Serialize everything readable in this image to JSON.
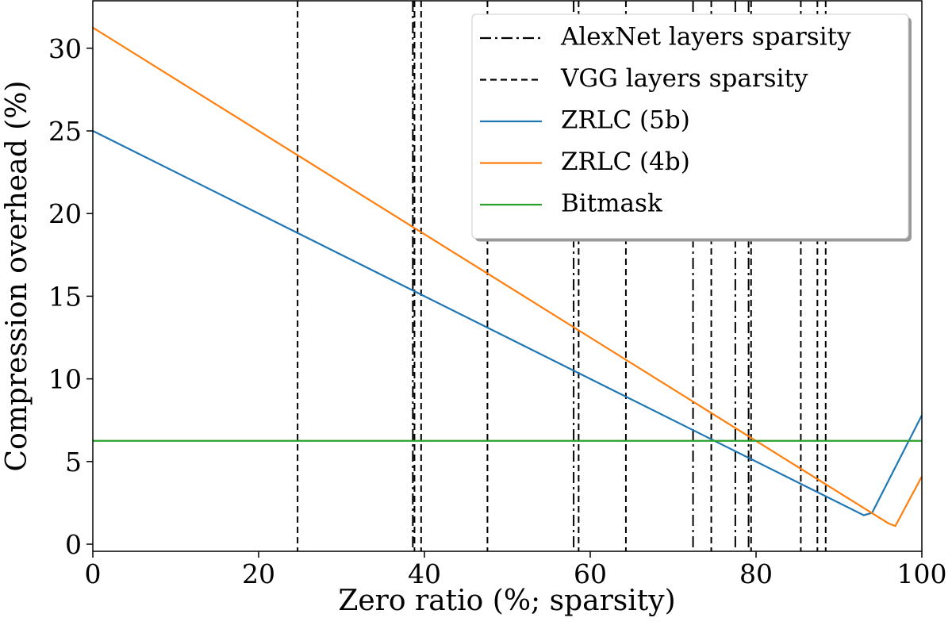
{
  "chart_data": {
    "type": "line",
    "xlabel": "Zero ratio (%; sparsity)",
    "ylabel": "Compression overhead (%)",
    "xlim": [
      0,
      100
    ],
    "ylim": [
      -0.43,
      32.87
    ],
    "xticks": [
      0,
      20,
      40,
      60,
      80,
      100
    ],
    "yticks": [
      0,
      5,
      10,
      15,
      20,
      25,
      30
    ],
    "legend": "upper right",
    "vlines": [
      {
        "name": "AlexNet layers sparsity",
        "color": "#000000",
        "style": "dashdot",
        "x": [
          38.6,
          58.0,
          72.4,
          77.5,
          79.1
        ]
      },
      {
        "name": "VGG layers sparsity",
        "color": "#000000",
        "style": "dashed",
        "x": [
          24.7,
          38.8,
          39.6,
          47.6,
          58.6,
          64.3,
          74.6,
          79.4,
          85.4,
          87.4,
          88.4
        ]
      }
    ],
    "series": [
      {
        "name": "ZRLC (5b)",
        "color": "#1f77b4",
        "x": [
          0,
          93,
          94,
          100
        ],
        "values": [
          25,
          1.75,
          1.9,
          7.8
        ]
      },
      {
        "name": "ZRLC (4b)",
        "color": "#ff7f0e",
        "x": [
          0,
          96,
          96.8,
          100
        ],
        "values": [
          31.25,
          1.25,
          1.1,
          4.1
        ]
      },
      {
        "name": "Bitmask",
        "color": "#2ca02c",
        "x": [
          0,
          100
        ],
        "values": [
          6.25,
          6.25
        ]
      }
    ]
  }
}
